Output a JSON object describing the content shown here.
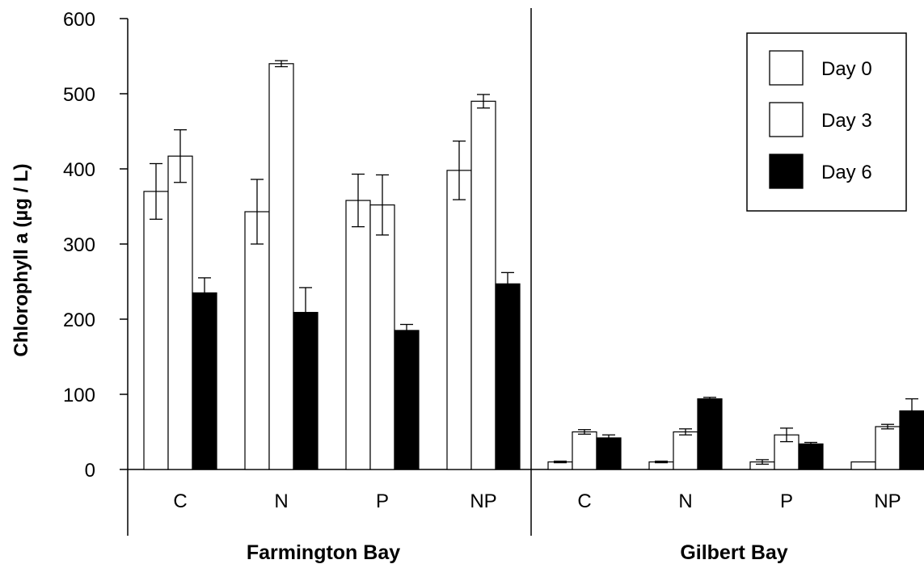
{
  "chart_data": {
    "type": "bar",
    "ylabel": "Chlorophyll a (µg / L)",
    "ylim": [
      0,
      600
    ],
    "yticks": [
      0,
      100,
      200,
      300,
      400,
      500,
      600
    ],
    "groups": [
      {
        "name": "Farmington Bay",
        "categories": [
          "C",
          "N",
          "P",
          "NP"
        ],
        "series": [
          {
            "name": "Day 0",
            "values": [
              370,
              343,
              358,
              398
            ],
            "errors": [
              37,
              43,
              35,
              39
            ]
          },
          {
            "name": "Day 3",
            "values": [
              417,
              540,
              352,
              490
            ],
            "errors": [
              35,
              4,
              40,
              9
            ]
          },
          {
            "name": "Day 6",
            "values": [
              235,
              209,
              185,
              247
            ],
            "errors": [
              20,
              33,
              8,
              15
            ]
          }
        ]
      },
      {
        "name": "Gilbert Bay",
        "categories": [
          "C",
          "N",
          "P",
          "NP"
        ],
        "series": [
          {
            "name": "Day 0",
            "values": [
              10,
              10,
              10,
              10
            ],
            "errors": [
              1,
              1,
              3,
              0
            ]
          },
          {
            "name": "Day 3",
            "values": [
              50,
              50,
              46,
              57
            ],
            "errors": [
              3,
              4,
              9,
              3
            ]
          },
          {
            "name": "Day 6",
            "values": [
              42,
              94,
              34,
              78
            ],
            "errors": [
              4,
              2,
              2,
              16
            ]
          }
        ]
      }
    ],
    "legend": {
      "position": "top-right",
      "items": [
        {
          "name": "Day 0",
          "fill": "#ffffff"
        },
        {
          "name": "Day 3",
          "fill": "#ffffff"
        },
        {
          "name": "Day 6",
          "fill": "#000000"
        }
      ]
    },
    "grid": false
  }
}
